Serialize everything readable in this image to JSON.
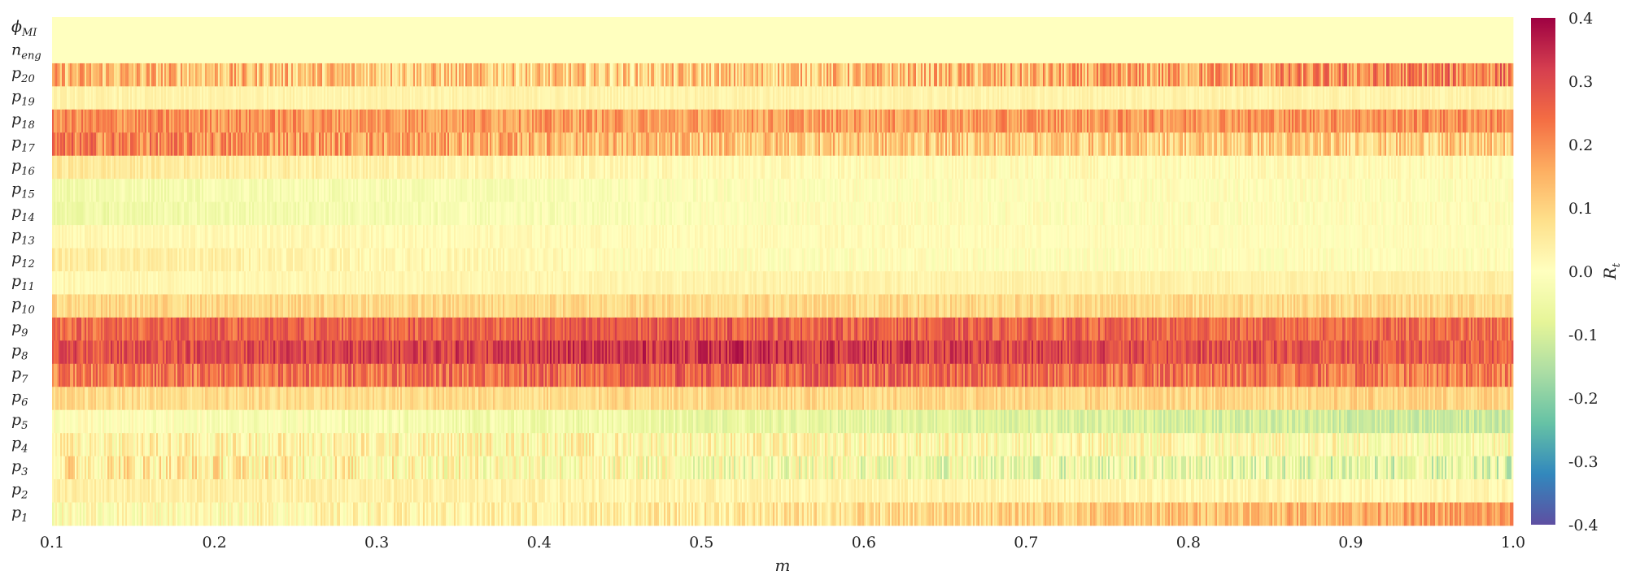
{
  "chart_data": {
    "type": "heatmap",
    "title": "",
    "xlabel": "m",
    "ylabel": "",
    "xlim": [
      0.1,
      1.0
    ],
    "x_ticks": [
      "0.1",
      "0.2",
      "0.3",
      "0.4",
      "0.5",
      "0.6",
      "0.7",
      "0.8",
      "0.9",
      "1.0"
    ],
    "x_tick_values": [
      0.1,
      0.2,
      0.3,
      0.4,
      0.5,
      0.6,
      0.7,
      0.8,
      0.9,
      1.0
    ],
    "colorbar": {
      "label": "R_t",
      "label_display": "R",
      "label_sub": "t",
      "vmin": -0.4,
      "vmax": 0.4,
      "ticks": [
        "0.4",
        "0.3",
        "0.2",
        "0.1",
        "0.0",
        "-0.1",
        "-0.2",
        "-0.3",
        "-0.4"
      ],
      "tick_values": [
        0.4,
        0.3,
        0.2,
        0.1,
        0.0,
        -0.1,
        -0.2,
        -0.3,
        -0.4
      ],
      "colormap": "Spectral_r",
      "colors": [
        "#5e4fa2",
        "#3288bd",
        "#66c2a5",
        "#abdda4",
        "#e6f598",
        "#ffffbf",
        "#fee08b",
        "#fdae61",
        "#f46d43",
        "#d53e4f",
        "#9e0142"
      ]
    },
    "rows": [
      {
        "label": "ϕ",
        "sub": "MI",
        "profile": [
          [
            0.1,
            0.0
          ],
          [
            1.0,
            0.0
          ]
        ],
        "noise": 0.0
      },
      {
        "label": "n",
        "sub": "eng",
        "profile": [
          [
            0.1,
            0.0
          ],
          [
            1.0,
            0.0
          ]
        ],
        "noise": 0.0
      },
      {
        "label": "p",
        "sub": "20",
        "profile": [
          [
            0.1,
            0.14
          ],
          [
            0.45,
            0.1
          ],
          [
            0.7,
            0.14
          ],
          [
            1.0,
            0.22
          ]
        ],
        "noise": 0.1
      },
      {
        "label": "p",
        "sub": "19",
        "profile": [
          [
            0.1,
            0.03
          ],
          [
            1.0,
            0.03
          ]
        ],
        "noise": 0.02
      },
      {
        "label": "p",
        "sub": "18",
        "profile": [
          [
            0.1,
            0.2
          ],
          [
            0.5,
            0.17
          ],
          [
            1.0,
            0.2
          ]
        ],
        "noise": 0.06
      },
      {
        "label": "p",
        "sub": "17",
        "profile": [
          [
            0.1,
            0.22
          ],
          [
            0.5,
            0.12
          ],
          [
            1.0,
            0.1
          ]
        ],
        "noise": 0.08
      },
      {
        "label": "p",
        "sub": "16",
        "profile": [
          [
            0.1,
            0.06
          ],
          [
            0.5,
            0.01
          ],
          [
            1.0,
            0.01
          ]
        ],
        "noise": 0.03
      },
      {
        "label": "p",
        "sub": "15",
        "profile": [
          [
            0.1,
            -0.04
          ],
          [
            0.6,
            0.0
          ],
          [
            1.0,
            0.0
          ]
        ],
        "noise": 0.03
      },
      {
        "label": "p",
        "sub": "14",
        "profile": [
          [
            0.1,
            -0.05
          ],
          [
            0.6,
            0.0
          ],
          [
            1.0,
            0.0
          ]
        ],
        "noise": 0.03
      },
      {
        "label": "p",
        "sub": "13",
        "profile": [
          [
            0.1,
            0.02
          ],
          [
            1.0,
            0.0
          ]
        ],
        "noise": 0.02
      },
      {
        "label": "p",
        "sub": "12",
        "profile": [
          [
            0.1,
            0.05
          ],
          [
            0.5,
            0.0
          ],
          [
            1.0,
            0.0
          ]
        ],
        "noise": 0.03
      },
      {
        "label": "p",
        "sub": "11",
        "profile": [
          [
            0.1,
            0.02
          ],
          [
            1.0,
            0.04
          ]
        ],
        "noise": 0.02
      },
      {
        "label": "p",
        "sub": "10",
        "profile": [
          [
            0.1,
            0.09
          ],
          [
            1.0,
            0.09
          ]
        ],
        "noise": 0.04
      },
      {
        "label": "p",
        "sub": "9",
        "profile": [
          [
            0.1,
            0.25
          ],
          [
            0.5,
            0.27
          ],
          [
            1.0,
            0.24
          ]
        ],
        "noise": 0.06
      },
      {
        "label": "p",
        "sub": "8",
        "profile": [
          [
            0.1,
            0.28
          ],
          [
            0.5,
            0.33
          ],
          [
            1.0,
            0.26
          ]
        ],
        "noise": 0.06
      },
      {
        "label": "p",
        "sub": "7",
        "profile": [
          [
            0.1,
            0.22
          ],
          [
            0.5,
            0.26
          ],
          [
            1.0,
            0.22
          ]
        ],
        "noise": 0.07
      },
      {
        "label": "p",
        "sub": "6",
        "profile": [
          [
            0.1,
            0.08
          ],
          [
            1.0,
            0.1
          ]
        ],
        "noise": 0.04
      },
      {
        "label": "p",
        "sub": "5",
        "profile": [
          [
            0.1,
            0.0
          ],
          [
            0.5,
            -0.06
          ],
          [
            1.0,
            -0.12
          ]
        ],
        "noise": 0.04
      },
      {
        "label": "p",
        "sub": "4",
        "profile": [
          [
            0.1,
            0.03
          ],
          [
            1.0,
            0.0
          ]
        ],
        "noise": 0.08
      },
      {
        "label": "p",
        "sub": "3",
        "profile": [
          [
            0.1,
            0.06
          ],
          [
            0.5,
            -0.02
          ],
          [
            1.0,
            -0.08
          ]
        ],
        "noise": 0.1
      },
      {
        "label": "p",
        "sub": "2",
        "profile": [
          [
            0.1,
            0.04
          ],
          [
            1.0,
            0.02
          ]
        ],
        "noise": 0.03
      },
      {
        "label": "p",
        "sub": "1",
        "profile": [
          [
            0.1,
            0.0
          ],
          [
            0.5,
            0.05
          ],
          [
            1.0,
            0.18
          ]
        ],
        "noise": 0.06
      }
    ]
  }
}
